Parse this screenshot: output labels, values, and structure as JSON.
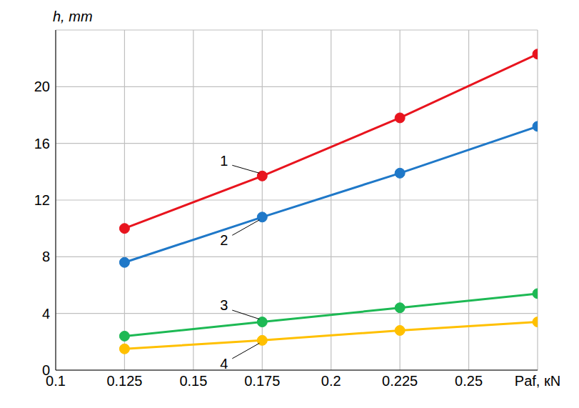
{
  "chart_data": {
    "type": "line",
    "y_label": "h, mm",
    "xlim": [
      0.1,
      0.275
    ],
    "xticks": [
      0.1,
      0.125,
      0.15,
      0.175,
      0.2,
      0.225,
      0.25,
      {
        "value": 0.275,
        "label": "Paf, кN"
      }
    ],
    "ylim": [
      0,
      24
    ],
    "yticks": [
      0,
      4,
      8,
      12,
      16,
      20
    ],
    "grid": true,
    "marker": "circle",
    "x": [
      0.125,
      0.175,
      0.225,
      0.275
    ],
    "series": [
      {
        "name": "1",
        "color": "#e8141e",
        "values": [
          10,
          13.7,
          17.8,
          22.3
        ]
      },
      {
        "name": "2",
        "color": "#1f78c8",
        "values": [
          7.6,
          10.8,
          13.9,
          17.2
        ]
      },
      {
        "name": "3",
        "color": "#1db954",
        "values": [
          2.4,
          3.4,
          4.4,
          5.4
        ]
      },
      {
        "name": "4",
        "color": "#ffc000",
        "values": [
          1.5,
          2.1,
          2.8,
          3.4
        ]
      }
    ]
  }
}
